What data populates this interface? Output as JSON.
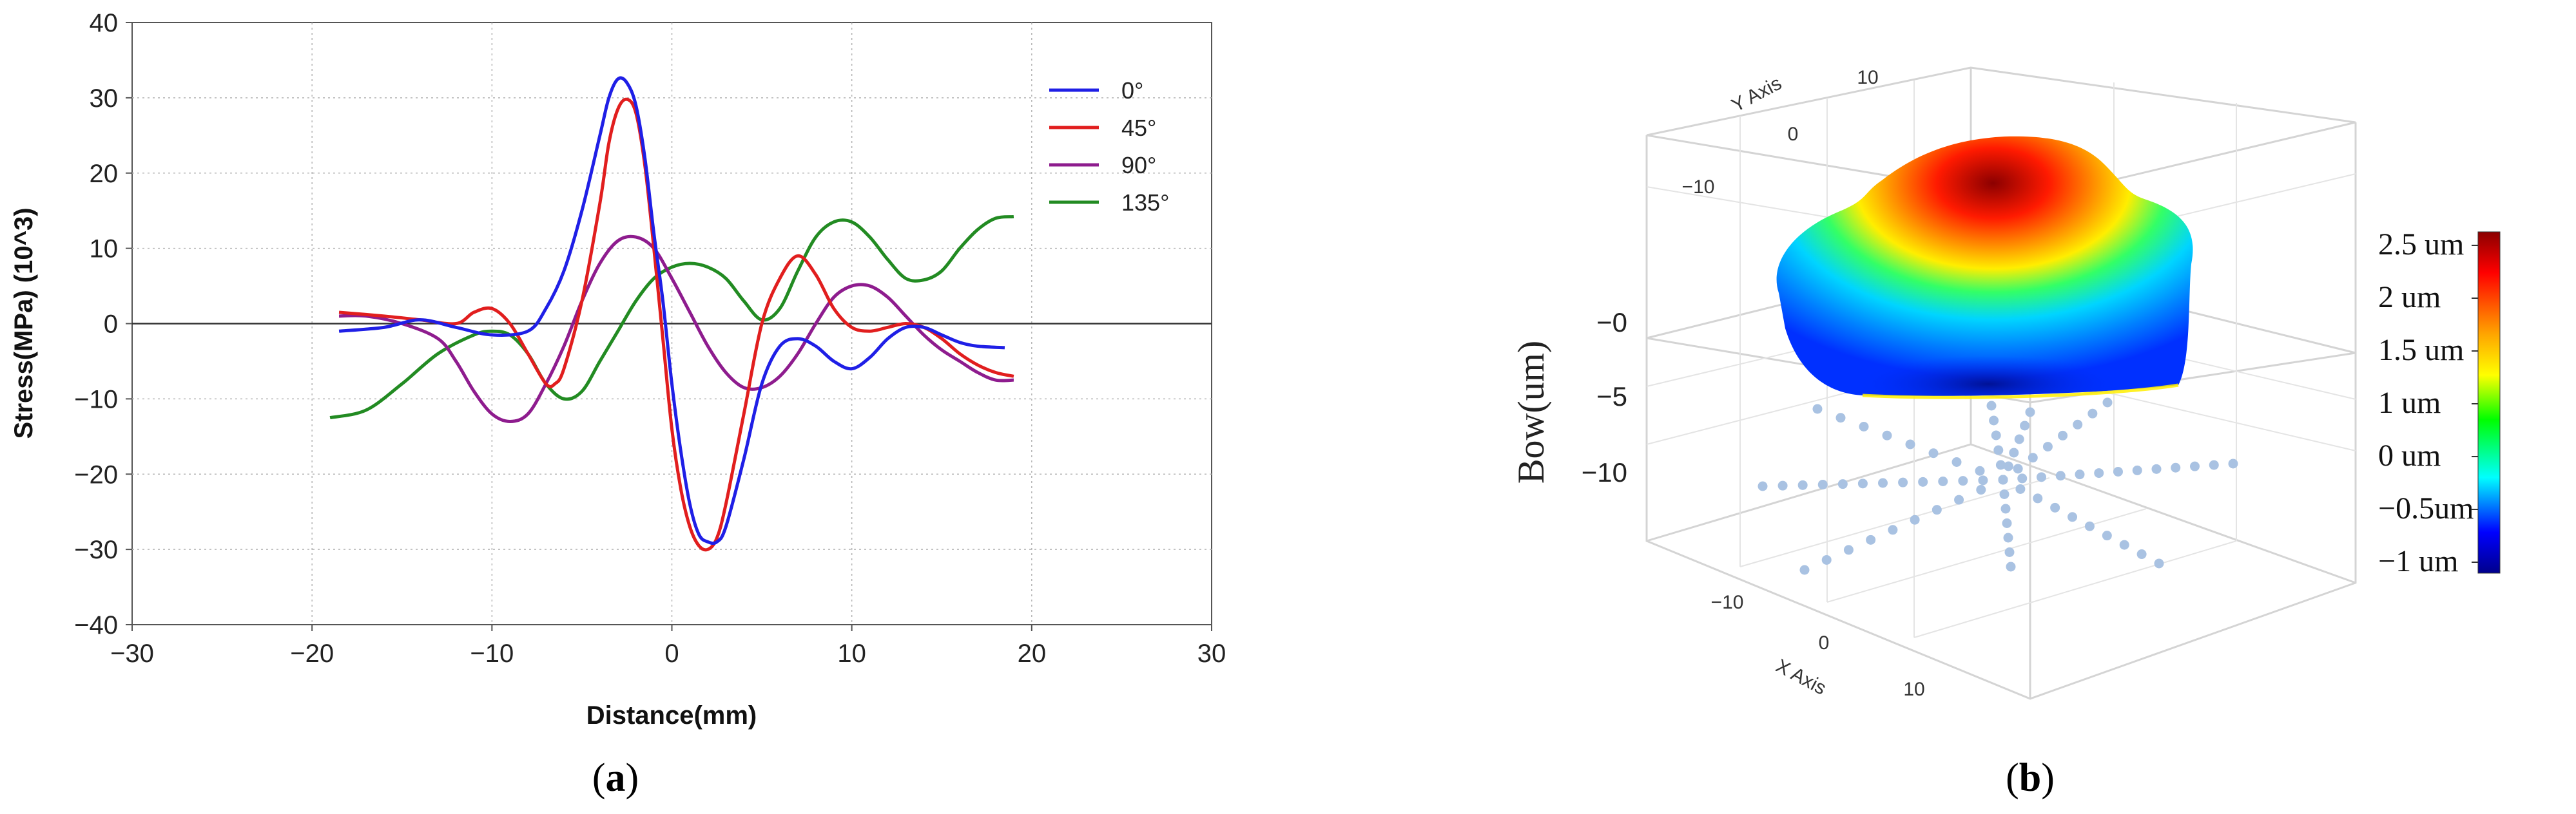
{
  "panel_a": {
    "caption_open": "(",
    "caption_letter": "a",
    "caption_close": ")",
    "chart_data": {
      "type": "line",
      "title": "",
      "xlabel": "Distance(mm)",
      "ylabel": "Stress(MPa) (10^3)",
      "xlim": [
        -30,
        30
      ],
      "ylim": [
        -40,
        40
      ],
      "xticks": [
        -30,
        -20,
        -10,
        0,
        10,
        20,
        30
      ],
      "yticks": [
        -40,
        -30,
        -20,
        -10,
        0,
        10,
        20,
        30,
        40
      ],
      "xtick_labels": [
        "−30",
        "−20",
        "−10",
        "0",
        "10",
        "20",
        "30"
      ],
      "ytick_labels": [
        "−40",
        "−30",
        "−20",
        "−10",
        "0",
        "10",
        "20",
        "30",
        "40"
      ],
      "grid": true,
      "zero_line": true,
      "legend_position": "top-right",
      "series": [
        {
          "name": "0°",
          "color": "#1f1fe6",
          "x": [
            -18.5,
            -16,
            -14,
            -12,
            -10,
            -8,
            -7,
            -6,
            -5,
            -4,
            -3.5,
            -3,
            -2.5,
            -2,
            -1.5,
            -1,
            -0.5,
            0,
            0.5,
            1,
            1.5,
            2,
            2.5,
            3,
            4,
            5,
            6,
            7,
            8,
            9,
            10,
            11,
            12,
            13,
            14,
            15,
            16,
            17,
            18.5
          ],
          "y": [
            -1,
            -0.5,
            0.5,
            -0.5,
            -1.5,
            -1,
            2,
            7,
            15,
            25,
            30,
            32.5,
            32,
            29,
            22,
            12,
            3,
            -8,
            -17,
            -24,
            -28,
            -29,
            -29,
            -27,
            -18,
            -8,
            -3,
            -2,
            -3,
            -5,
            -6,
            -4.5,
            -2,
            -0.5,
            -0.5,
            -1.5,
            -2.5,
            -3,
            -3.2
          ]
        },
        {
          "name": "45°",
          "color": "#e11e1e",
          "x": [
            -18.5,
            -16,
            -14,
            -12,
            -11,
            -10,
            -9,
            -8,
            -7,
            -6.5,
            -6,
            -5,
            -4,
            -3.5,
            -3,
            -2.5,
            -2,
            -1.5,
            -1,
            -0.5,
            0,
            0.5,
            1,
            1.5,
            2,
            2.5,
            3,
            4,
            5,
            6,
            7,
            8,
            9,
            10,
            11,
            12,
            13,
            14,
            15,
            16,
            17,
            18,
            19
          ],
          "y": [
            1.5,
            1,
            0.5,
            0,
            1.5,
            2,
            0,
            -4,
            -8,
            -8,
            -6,
            3,
            16,
            24,
            28.5,
            29.8,
            28,
            21,
            10,
            -2,
            -14,
            -22,
            -27,
            -29.5,
            -30,
            -28.5,
            -24,
            -12,
            0,
            6,
            9,
            6.5,
            2,
            -0.5,
            -1,
            -0.5,
            0,
            -0.5,
            -2,
            -4,
            -5.5,
            -6.5,
            -7
          ]
        },
        {
          "name": "90°",
          "color": "#8e1c8e",
          "x": [
            -18.5,
            -17,
            -15,
            -13,
            -12,
            -11,
            -10,
            -9,
            -8,
            -7,
            -6,
            -5,
            -4,
            -3,
            -2,
            -1,
            0,
            1,
            2,
            3,
            4,
            5,
            6,
            7,
            8,
            9,
            10,
            11,
            12,
            13,
            14,
            15,
            16,
            17,
            18,
            19
          ],
          "y": [
            1,
            1,
            0,
            -2,
            -5,
            -9,
            -12,
            -13,
            -12,
            -8,
            -3,
            3,
            8,
            11,
            11.5,
            10,
            6,
            1.5,
            -3,
            -6.5,
            -8.5,
            -8.5,
            -7,
            -4,
            0,
            3.5,
            5,
            5,
            3.5,
            1,
            -1.5,
            -3.5,
            -5,
            -6.5,
            -7.5,
            -7.5
          ]
        },
        {
          "name": "135°",
          "color": "#228b22",
          "x": [
            -19,
            -17,
            -15,
            -13,
            -11,
            -10,
            -9,
            -8,
            -7,
            -6,
            -5,
            -4,
            -3,
            -2,
            -1,
            0,
            1,
            2,
            3,
            4,
            5,
            6,
            7,
            8,
            9,
            10,
            11,
            12,
            13,
            14,
            15,
            16,
            17,
            18,
            19
          ],
          "y": [
            -12.5,
            -11.5,
            -8,
            -4,
            -1.5,
            -1,
            -1.5,
            -4,
            -8,
            -10,
            -9,
            -5,
            -1,
            3,
            6,
            7.5,
            8,
            7.5,
            6,
            3,
            0.5,
            2,
            7,
            11.5,
            13.5,
            13.5,
            11.5,
            8.5,
            6,
            5.8,
            7,
            10,
            12.5,
            14,
            14.2
          ]
        }
      ]
    }
  },
  "panel_b": {
    "caption_open": "(",
    "caption_letter": "b",
    "caption_close": ")",
    "chart_data": {
      "type": "surface3d",
      "zlabel": "Bow(um)",
      "xlabel": "X Axis",
      "ylabel": "Y Axis",
      "x_tick_labels": [
        "−10",
        "0",
        "10"
      ],
      "y_tick_labels": [
        "−10",
        "0",
        "10"
      ],
      "z_tick_labels": [
        "−0",
        "−5",
        "−10"
      ],
      "colorbar": {
        "labels": [
          "2.5 um",
          "2 um",
          "1.5 um",
          "1 um",
          "0 um",
          "−0.5um",
          "−1 um"
        ],
        "colors": [
          "#8b0000",
          "#ff0000",
          "#ffa500",
          "#ffff00",
          "#00ff00",
          "#00ffff",
          "#0000ff",
          "#00008b"
        ]
      },
      "grid": true,
      "measurement_points_color": "#a9c2e2"
    }
  }
}
